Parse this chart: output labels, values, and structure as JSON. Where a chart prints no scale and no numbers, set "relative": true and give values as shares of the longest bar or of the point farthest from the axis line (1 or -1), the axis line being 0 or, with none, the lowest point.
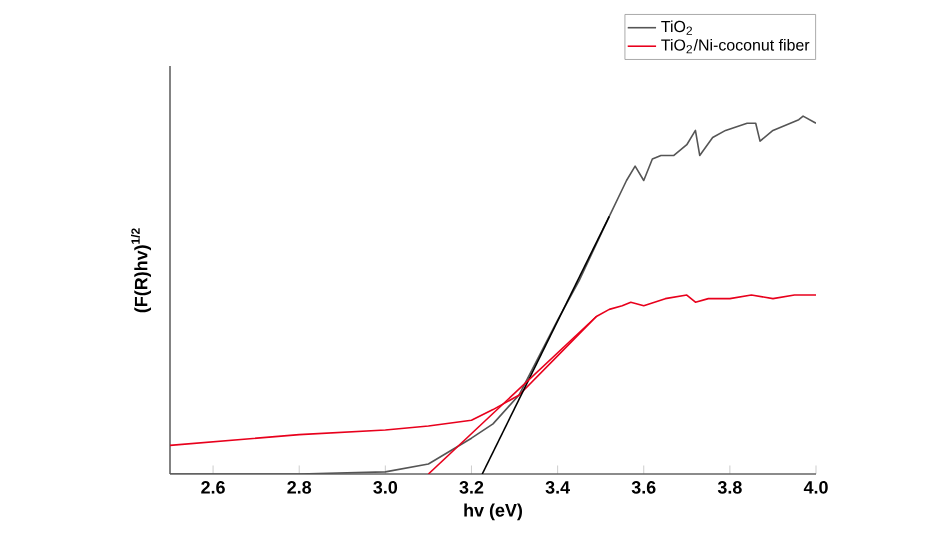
{
  "chart_data": {
    "type": "line",
    "xlabel": "hv (eV)",
    "ylabel": "(F(R)hv)$^{1/2}$",
    "relative": true,
    "xlim": [
      2.5,
      4.0
    ],
    "xticks": [
      2.6,
      2.8,
      {
        "value": 3.0,
        "label": "3.0"
      },
      3.2,
      3.4,
      3.6,
      3.8,
      {
        "value": 4.0,
        "label": "4.0"
      }
    ],
    "legend": "top right",
    "tick_labels": "x",
    "series": [
      {
        "name": "TiO$_{2}$",
        "color": "#555555",
        "x": [
          2.5,
          2.8,
          3.0,
          3.1,
          3.2,
          3.25,
          3.31,
          3.4,
          3.45,
          3.52,
          3.56,
          3.58,
          3.6,
          3.62,
          3.64,
          3.67,
          3.7,
          3.72,
          3.73,
          3.76,
          3.79,
          3.84,
          3.86,
          3.87,
          3.9,
          3.96,
          3.97,
          4.0
        ],
        "values": [
          0,
          0,
          0.006,
          0.028,
          0.1,
          0.14,
          0.22,
          0.43,
          0.54,
          0.72,
          0.82,
          0.86,
          0.82,
          0.88,
          0.89,
          0.89,
          0.92,
          0.96,
          0.89,
          0.94,
          0.96,
          0.98,
          0.98,
          0.93,
          0.96,
          0.99,
          1.0,
          0.98
        ]
      },
      {
        "name": "TiO$_{2}$/Ni-coconut fiber",
        "color": "#e8001c",
        "x": [
          2.5,
          2.8,
          3.0,
          3.1,
          3.2,
          3.25,
          3.31,
          3.4,
          3.49,
          3.52,
          3.55,
          3.57,
          3.6,
          3.65,
          3.7,
          3.72,
          3.75,
          3.8,
          3.85,
          3.9,
          3.95,
          4.0
        ],
        "values": [
          0.08,
          0.11,
          0.123,
          0.134,
          0.15,
          0.18,
          0.22,
          0.33,
          0.44,
          0.46,
          0.47,
          0.48,
          0.47,
          0.49,
          0.5,
          0.48,
          0.49,
          0.49,
          0.5,
          0.49,
          0.5,
          0.5
        ]
      },
      {
        "color": "#000000",
        "x": [
          3.225,
          3.52
        ],
        "values": [
          0,
          0.72
        ]
      },
      {
        "color": "#e8001c",
        "x": [
          3.1,
          3.49
        ],
        "values": [
          0,
          0.44
        ]
      }
    ]
  }
}
